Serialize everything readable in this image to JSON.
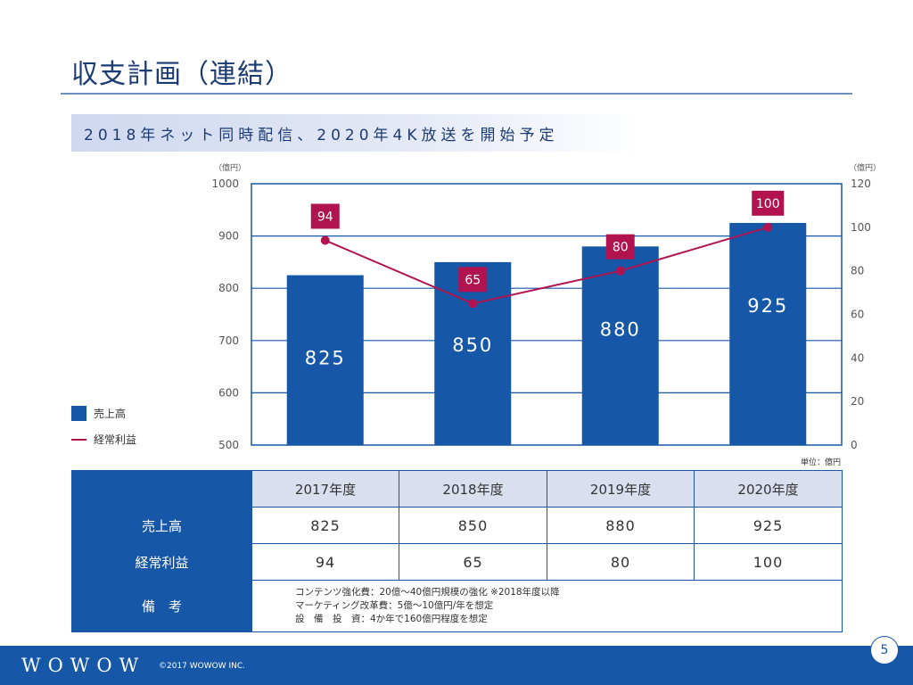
{
  "page": {
    "title": "収支計画（連結）",
    "subtitle": "2018年ネット同時配信、2020年4K放送を開始予定"
  },
  "chart_data": {
    "type": "bar",
    "categories": [
      "2017年度",
      "2018年度",
      "2019年度",
      "2020年度"
    ],
    "series": [
      {
        "name": "売上高",
        "type": "bar",
        "axis": "left",
        "values": [
          825,
          850,
          880,
          925
        ],
        "color": "#1657a8"
      },
      {
        "name": "経常利益",
        "type": "line",
        "axis": "right",
        "values": [
          94,
          65,
          80,
          100
        ],
        "color": "#b0134e"
      }
    ],
    "y_left": {
      "unit": "（億円）",
      "ylim": [
        500,
        1000
      ],
      "ticks": [
        500,
        600,
        700,
        800,
        900,
        1000
      ]
    },
    "y_right": {
      "unit": "（億円）",
      "ylim": [
        0,
        120
      ],
      "ticks": [
        0,
        20,
        40,
        60,
        80,
        100,
        120
      ]
    },
    "grid": true,
    "legend": "left",
    "unit_note": "単位：億円"
  },
  "table": {
    "years": [
      "2017年度",
      "2018年度",
      "2019年度",
      "2020年度"
    ],
    "rows": [
      {
        "label": "売上高",
        "values": [
          "825",
          "850",
          "880",
          "925"
        ]
      },
      {
        "label": "経常利益",
        "values": [
          "94",
          "65",
          "80",
          "100"
        ]
      }
    ],
    "notes_label": "備　考",
    "notes": [
      "コンテンツ強化費：20億〜40億円規模の強化 ※2018年度以降",
      "マーケティング改革費：5億〜10億円/年を想定",
      "設　備　投　資：4か年で160億円程度を想定"
    ]
  },
  "footer": {
    "brand": "WOWOW",
    "copyright": "©2017 WOWOW INC.",
    "page_number": "5"
  }
}
